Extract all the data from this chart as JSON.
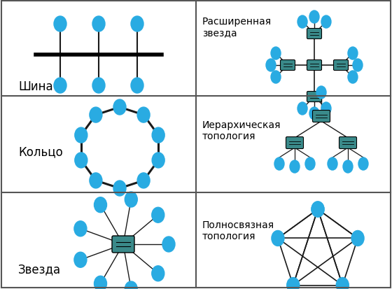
{
  "node_color": "#29ABE2",
  "hub_color": "#3A8A8A",
  "line_color": "#1a1a1a",
  "bg_color": "#ffffff",
  "border_color": "#555555",
  "text_color": "#000000",
  "labels": {
    "bus": "Шина",
    "ring": "Кольцо",
    "star": "Звезда",
    "ext_star": "Расширенная\nзвезда",
    "hier": "Иерархическая\nтопология",
    "mesh": "Полносвязная\nтопология"
  }
}
